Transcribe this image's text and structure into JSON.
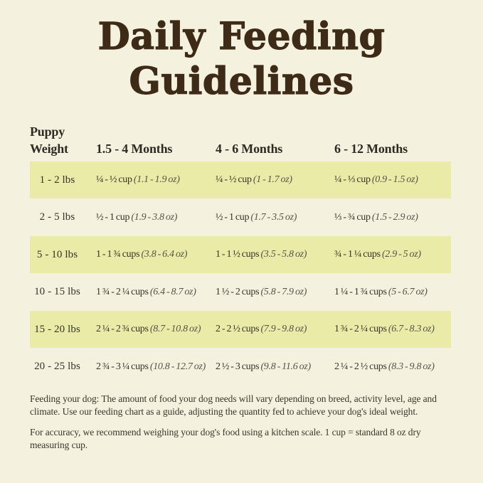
{
  "title": {
    "line1": "Daily Feeding",
    "line2": "Guidelines"
  },
  "table": {
    "header": {
      "weight_line1": "Puppy",
      "weight_line2": "Weight",
      "months_1": "1.5 - 4 Months",
      "months_2": "4 - 6 Months",
      "months_3": "6 - 12 Months"
    },
    "rows": [
      {
        "weight": "1 - 2 lbs",
        "c1_cups": "¼ - ½ cup",
        "c1_oz": "(1.1 - 1.9 oz)",
        "c2_cups": "¼ - ½ cup",
        "c2_oz": "(1 - 1.7 oz)",
        "c3_cups": "¼ - ⅓ cup",
        "c3_oz": "(0.9 - 1.5 oz)"
      },
      {
        "weight": "2 - 5 lbs",
        "c1_cups": "½ - 1 cup",
        "c1_oz": "(1.9 - 3.8 oz)",
        "c2_cups": "½ - 1 cup",
        "c2_oz": "(1.7 - 3.5 oz)",
        "c3_cups": "⅓ - ¾ cup",
        "c3_oz": "(1.5 - 2.9 oz)"
      },
      {
        "weight": "5 - 10 lbs",
        "c1_cups": "1 - 1 ¾ cups",
        "c1_oz": "(3.8 - 6.4 oz)",
        "c2_cups": "1 - 1 ½ cups",
        "c2_oz": "(3.5 - 5.8 oz)",
        "c3_cups": "¾ - 1 ¼ cups",
        "c3_oz": "(2.9 - 5 oz)"
      },
      {
        "weight": "10 - 15 lbs",
        "c1_cups": "1 ¾ - 2 ¼ cups",
        "c1_oz": "(6.4 - 8.7 oz)",
        "c2_cups": "1 ½ - 2 cups",
        "c2_oz": "(5.8 - 7.9 oz)",
        "c3_cups": "1 ¼ - 1 ¾ cups",
        "c3_oz": "(5 - 6.7 oz)"
      },
      {
        "weight": "15 - 20 lbs",
        "c1_cups": "2 ¼ - 2 ¾ cups",
        "c1_oz": "(8.7 - 10.8 oz)",
        "c2_cups": "2 - 2 ½ cups",
        "c2_oz": "(7.9 - 9.8 oz)",
        "c3_cups": "1 ¾ - 2 ¼ cups",
        "c3_oz": "(6.7 - 8.3 oz)"
      },
      {
        "weight": "20 - 25 lbs",
        "c1_cups": "2 ¾ - 3 ¼ cups",
        "c1_oz": "(10.8 - 12.7 oz)",
        "c2_cups": "2 ½ - 3 cups",
        "c2_oz": "(9.8 - 11.6 oz)",
        "c3_cups": "2 ¼ - 2 ½ cups",
        "c3_oz": "(8.3 - 9.8 oz)"
      }
    ]
  },
  "notes": {
    "para1": "Feeding your dog: The amount of food your dog needs will vary depending on breed, activity level, age and climate. Use our feeding chart as a guide, adjusting the quantity fed to achieve your dog's ideal weight.",
    "para2": "For accuracy, we recommend weighing your dog's food using a kitchen scale. 1 cup = standard 8 oz dry measuring cup."
  },
  "colors": {
    "background": "#f4f1de",
    "row_highlight": "#e9eba7",
    "title_brown": "#3e2b17",
    "text_dark": "#35332a",
    "text_muted": "#56544a"
  }
}
